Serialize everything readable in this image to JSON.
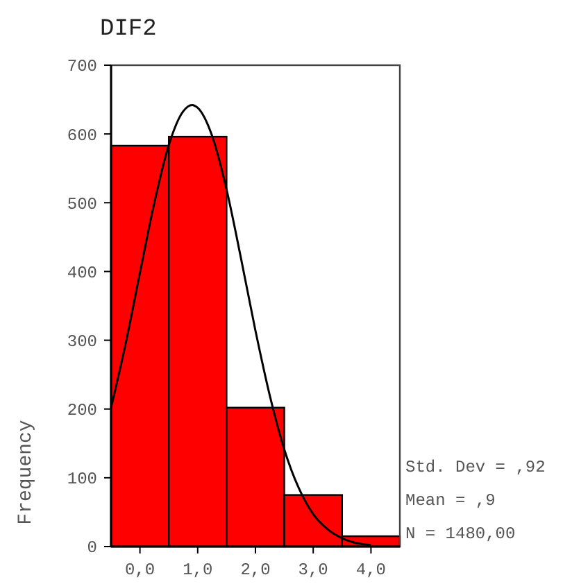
{
  "chart_data": {
    "type": "histogram",
    "title": "DIF2",
    "ylabel": "Frequency",
    "bins": [
      -0.5,
      0.5,
      1.5,
      2.5,
      3.5,
      4.5
    ],
    "values": [
      583,
      596,
      202,
      75,
      15
    ],
    "color": "#ff0000",
    "series": [
      {
        "type": "line",
        "color": "#000000",
        "x": [
          -0.5,
          -0.25,
          0,
          0.25,
          0.5,
          0.75,
          0.9,
          1,
          1.25,
          1.5,
          1.75,
          2,
          2.25,
          2.5,
          2.75,
          3,
          3.25,
          3.5,
          3.75,
          4
        ],
        "values": [
          202,
          294,
          398,
          500,
          584,
          633,
          642,
          638,
          597,
          519,
          419,
          314,
          219,
          141,
          85,
          47,
          25,
          12,
          5,
          2
        ]
      }
    ],
    "xlim": [
      -0.5,
      4.5
    ],
    "xticks": [
      {
        "value": 0,
        "label": "0,0"
      },
      {
        "value": 1,
        "label": "1,0"
      },
      {
        "value": 2,
        "label": "2,0"
      },
      {
        "value": 3,
        "label": "3,0"
      },
      {
        "value": 4,
        "label": "4,0"
      }
    ],
    "ylim": [
      0,
      700
    ],
    "yticks": [
      0,
      100,
      200,
      300,
      400,
      500,
      600,
      700
    ],
    "grid": false,
    "line_style": "solid",
    "annotations": [
      "Std. Dev = ,92",
      "Mean = ,9",
      "N = 1480,00"
    ]
  }
}
